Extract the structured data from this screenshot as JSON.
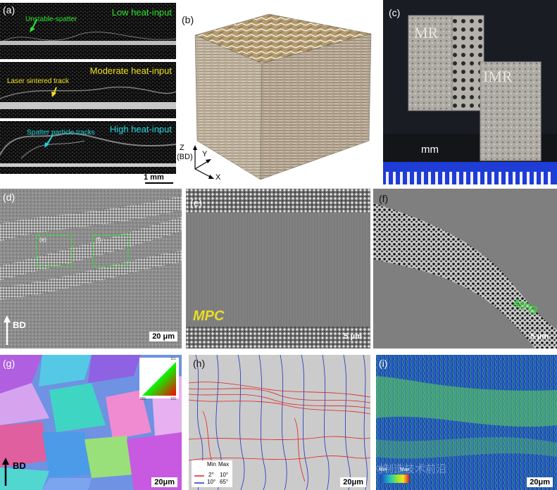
{
  "panels": {
    "a": {
      "label": "(a)",
      "rows": [
        {
          "title": "Low heat-input",
          "title_color": "#2ee52e",
          "annotation": "Unstable-spatter",
          "ann_color": "#2ee52e"
        },
        {
          "title": "Moderate heat-input",
          "title_color": "#f2e21b",
          "annotation": "Laser sintered track",
          "ann_color": "#f2e21b"
        },
        {
          "title": "High heat-input",
          "title_color": "#1fd8e0",
          "annotation": "Spatter particle tracks",
          "ann_color": "#1fd8e0"
        }
      ],
      "scale": "1 mm"
    },
    "b": {
      "label": "(b)",
      "axes": {
        "z": "Z",
        "bd": "(BD)",
        "y": "Y",
        "x": "X"
      }
    },
    "c": {
      "label": "(c)",
      "part1_text": "MR",
      "part2_text": "IMR",
      "unit": "mm"
    },
    "d": {
      "label": "(d)",
      "box_e": "(e)",
      "box_f": "(f)",
      "bd": "BD",
      "scale": "20 μm"
    },
    "e": {
      "label": "(e)",
      "annotation": "MPC",
      "scale": "5 μm"
    },
    "f": {
      "label": "(f)",
      "annotation": "MPB",
      "scale": "5 μm"
    },
    "g": {
      "label": "(g)",
      "bd": "BD",
      "scale": "20μm",
      "key_corners": [
        "001",
        "101",
        "111"
      ]
    },
    "h": {
      "label": "(h)",
      "legend": {
        "col_min": "Min",
        "col_max": "Max",
        "rows": [
          {
            "min": "2°",
            "max": "10°",
            "color": "#e02020"
          },
          {
            "min": "10°",
            "max": "65°",
            "color": "#2030c0"
          }
        ]
      },
      "scale": "20μm"
    },
    "i": {
      "label": "(i)",
      "legend_min": "Min",
      "legend_max": "Max",
      "scale": "20μm",
      "watermark": "公众号·增材制造技术前沿"
    }
  },
  "colors": {
    "accent_green": "#2ee52e",
    "accent_yellow": "#f2e21b",
    "accent_cyan": "#1fd8e0",
    "mpb_green": "#39d139",
    "mpc_yellow": "#ecdd20",
    "ruler_blue": "#1e3cd6"
  }
}
